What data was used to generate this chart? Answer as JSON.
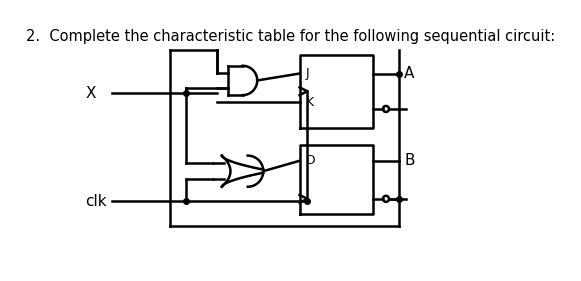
{
  "title": "2.  Complete the characteristic table for the following sequential circuit:",
  "title_fontsize": 10.5,
  "bg_color": "#ffffff",
  "line_color": "#000000",
  "text_color": "#000000",
  "label_X": "X",
  "label_clk": "clk",
  "label_A": "A",
  "label_B": "B",
  "label_J": "J",
  "label_K": "K",
  "label_D": "D"
}
